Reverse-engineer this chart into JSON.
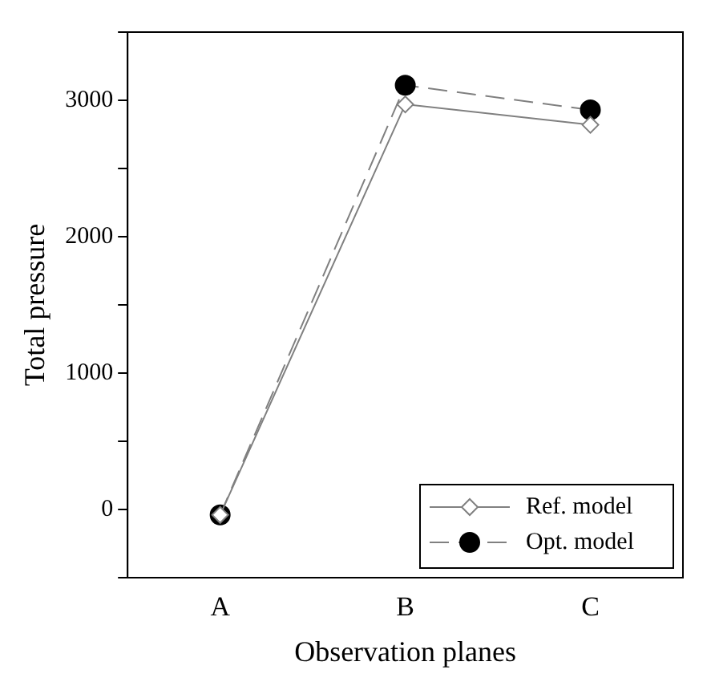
{
  "chart_data": {
    "type": "line",
    "xlabel": "Observation planes",
    "ylabel": "Total pressure",
    "categories": [
      "A",
      "B",
      "C"
    ],
    "series": [
      {
        "name": "Ref. model",
        "color": "#808080",
        "values": [
          -40,
          2970,
          2820
        ],
        "marker": "diamond",
        "line_style": "solid"
      },
      {
        "name": "Opt. model",
        "color": "#000000",
        "values": [
          -40,
          3110,
          2930
        ],
        "marker": "circle",
        "line_style": "dashed"
      }
    ],
    "ylim": [
      -500,
      3500
    ],
    "yticks": [
      {
        "value": -500,
        "label": null
      },
      0,
      {
        "value": 500,
        "label": null
      },
      1000,
      {
        "value": 1500,
        "label": null
      },
      2000,
      {
        "value": 2500,
        "label": null
      },
      3000,
      {
        "value": 3500,
        "label": null
      }
    ],
    "grid": false,
    "legend": "bottom right"
  }
}
